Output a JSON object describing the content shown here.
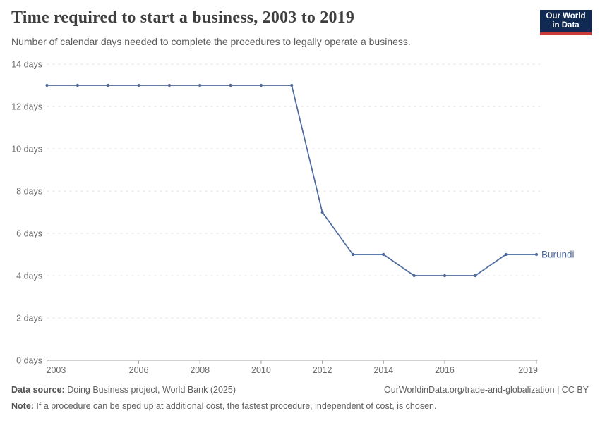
{
  "header": {
    "title": "Time required to start a business, 2003 to 2019",
    "subtitle": "Number of calendar days needed to complete the procedures to legally operate a business.",
    "logo": {
      "line1": "Our World",
      "line2": "in Data",
      "bg": "#102a54",
      "accent": "#cb3b3b"
    }
  },
  "chart_data": {
    "type": "line",
    "title": "Time required to start a business, 2003 to 2019",
    "xlabel": "",
    "ylabel": "",
    "xlim": [
      2003,
      2019
    ],
    "ylim": [
      0,
      14
    ],
    "x_ticks": [
      2003,
      2006,
      2008,
      2010,
      2012,
      2014,
      2016,
      2019
    ],
    "y_ticks": [
      0,
      2,
      4,
      6,
      8,
      10,
      12,
      14
    ],
    "y_tick_suffix": " days",
    "grid": "horizontal-dashed",
    "legend": "end-of-line-label",
    "colors": {
      "gridline": "#dcdcdc",
      "axis": "#a3a3a3",
      "tick_text": "#6b6b6b"
    },
    "series": [
      {
        "name": "Burundi",
        "color": "#4c6a9d",
        "x": [
          2003,
          2004,
          2005,
          2006,
          2007,
          2008,
          2009,
          2010,
          2011,
          2012,
          2013,
          2014,
          2015,
          2016,
          2017,
          2018,
          2019
        ],
        "values": [
          13,
          13,
          13,
          13,
          13,
          13,
          13,
          13,
          13,
          7,
          5,
          5,
          4,
          4,
          4,
          5,
          5
        ]
      }
    ]
  },
  "footer": {
    "source_label": "Data source:",
    "source_text": " Doing Business project, World Bank (2025)",
    "rights": "OurWorldinData.org/trade-and-globalization | CC BY",
    "note_label": "Note:",
    "note_text": " If a procedure can be sped up at additional cost, the fastest procedure, independent of cost, is chosen."
  }
}
